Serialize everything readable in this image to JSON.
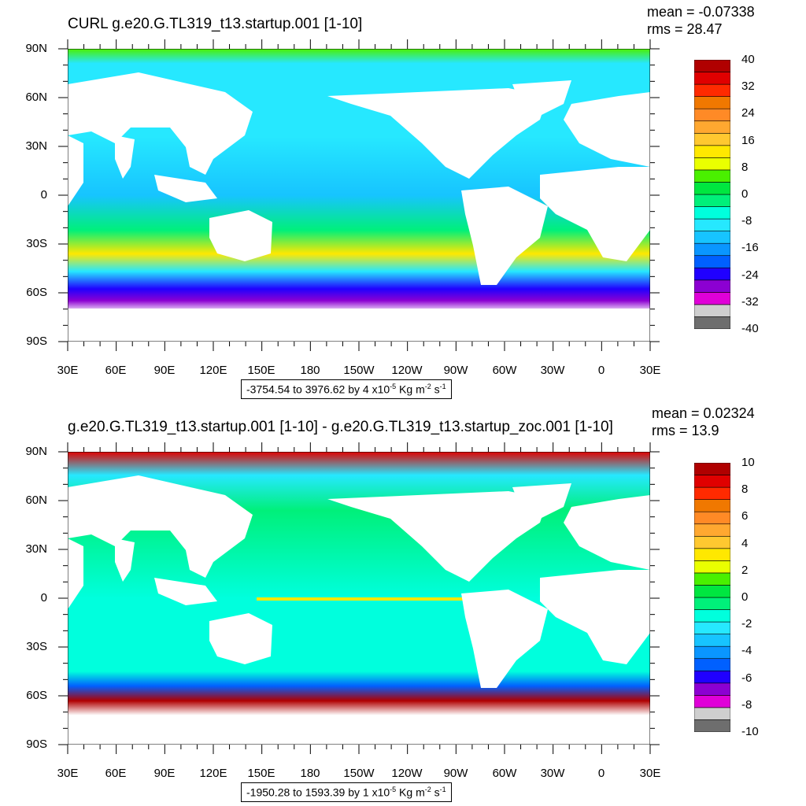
{
  "panels": [
    {
      "title": "CURL g.e20.G.TL319_t13.startup.001 [1-10]",
      "mean_text": "mean = -0.07338",
      "rms_text": "rms = 28.47",
      "range_text": "-3754.54 to 3976.62 by 4 x10",
      "range_exp": "-5",
      "units_a": " Kg m",
      "units_b": "-2",
      "units_c": " s",
      "units_d": "-1",
      "colorbar_labels": [
        "40",
        "32",
        "24",
        "16",
        "8",
        "0",
        "-8",
        "-16",
        "-24",
        "-32",
        "-40"
      ],
      "colorbar_range": [
        -40,
        40
      ],
      "colorbar_colors": [
        "#6e6e6e",
        "#cfcfcf",
        "#e000d8",
        "#8c00d2",
        "#2000ff",
        "#0060ff",
        "#0a96ff",
        "#17c4ff",
        "#26e8ff",
        "#00ffdd",
        "#00f07a",
        "#00e640",
        "#4af000",
        "#eaff00",
        "#ffe800",
        "#ffc830",
        "#ffa830",
        "#ff8a26",
        "#f07800",
        "#ff2a00",
        "#e00000",
        "#b00000"
      ]
    },
    {
      "title": "g.e20.G.TL319_t13.startup.001 [1-10] - g.e20.G.TL319_t13.startup_zoc.001 [1-10]",
      "mean_text": "mean = 0.02324",
      "rms_text": "rms = 13.9",
      "range_text": "-1950.28 to 1593.39 by 1 x10",
      "range_exp": "-5",
      "units_a": " Kg m",
      "units_b": "-2",
      "units_c": " s",
      "units_d": "-1",
      "colorbar_labels": [
        "10",
        "8",
        "6",
        "4",
        "2",
        "0",
        "-2",
        "-4",
        "-6",
        "-8",
        "-10"
      ],
      "colorbar_range": [
        -10,
        10
      ],
      "colorbar_colors": [
        "#6e6e6e",
        "#cfcfcf",
        "#e000d8",
        "#8c00d2",
        "#2000ff",
        "#0060ff",
        "#0a96ff",
        "#17c4ff",
        "#26e8ff",
        "#00ffdd",
        "#00f07a",
        "#00e640",
        "#4af000",
        "#eaff00",
        "#ffe800",
        "#ffc830",
        "#ffa830",
        "#ff8a26",
        "#f07800",
        "#ff2a00",
        "#e00000",
        "#b00000"
      ]
    }
  ],
  "lat_labels": [
    "90N",
    "60N",
    "30N",
    "0",
    "30S",
    "60S",
    "90S"
  ],
  "lon_labels": [
    "30E",
    "60E",
    "90E",
    "120E",
    "150E",
    "180",
    "150W",
    "120W",
    "90W",
    "60W",
    "30W",
    "0",
    "30E"
  ]
}
